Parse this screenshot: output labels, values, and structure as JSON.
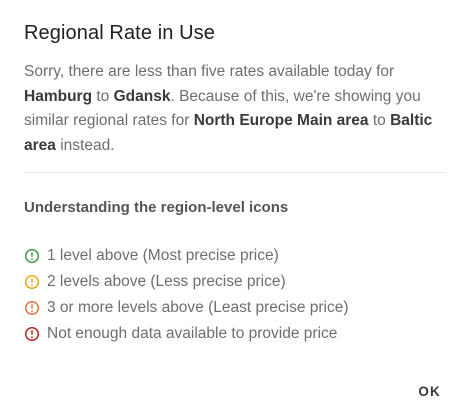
{
  "dialog": {
    "title": "Regional Rate in Use",
    "description": {
      "part1": "Sorry, there are less than five rates available today for ",
      "origin": "Hamburg",
      "part2": " to ",
      "destination": "Gdansk",
      "part3": ". Because of this, we're showing you similar regional rates for ",
      "origin_region": "North Europe Main area",
      "part4": " to ",
      "destination_region": "Baltic area",
      "part5": " instead."
    },
    "legend_heading": "Understanding the region-level icons",
    "legend": [
      {
        "icon": "alert-circle-icon",
        "color": "#3f9b4a",
        "label": "1 level above (Most precise price)"
      },
      {
        "icon": "alert-circle-icon",
        "color": "#e6a817",
        "label": "2 levels above (Less precise price)"
      },
      {
        "icon": "alert-circle-icon",
        "color": "#e8743b",
        "label": "3 or more levels above (Least precise price)"
      },
      {
        "icon": "alert-circle-icon",
        "color": "#b3261e",
        "label": "Not enough data available to provide price"
      }
    ],
    "ok_label": "OK"
  }
}
